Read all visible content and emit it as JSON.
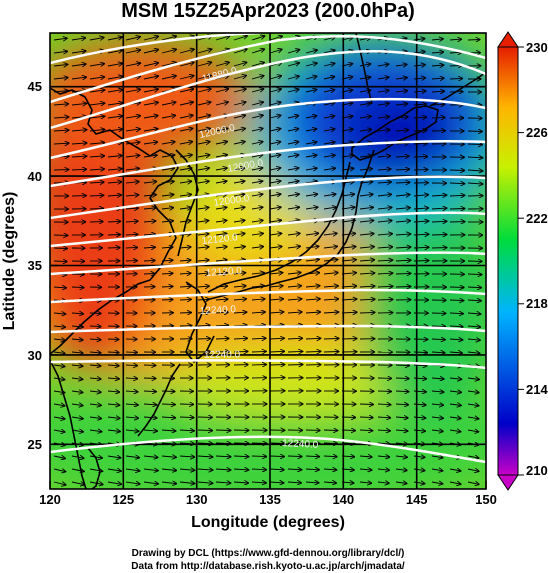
{
  "title": "MSM 15Z25Apr2023 (200.0hPa)",
  "x_axis": {
    "label": "Longitude (degrees)",
    "ticks": [
      "120",
      "125",
      "130",
      "135",
      "140",
      "145",
      "150"
    ]
  },
  "y_axis": {
    "label": "Latitude  (degrees)",
    "ticks": [
      "25",
      "30",
      "35",
      "40",
      "45"
    ]
  },
  "colorbar": {
    "ticks": [
      "210",
      "214",
      "218",
      "222",
      "226",
      "230"
    ]
  },
  "credits": {
    "line1": "Drawing by DCL (https://www.gfd-dennou.org/library/dcl/)",
    "line2": "Data from http://database.rish.kyoto-u.ac.jp/arch/jmadata/"
  },
  "contour_labels": [
    "11880.0",
    "12000.0",
    "12000.0",
    "12000.0",
    "12120.0",
    "12120.0",
    "12240.0",
    "12240.0",
    "12240.0"
  ],
  "chart_data": {
    "type": "heatmap",
    "title": "MSM 15Z25Apr2023 (200.0hPa)",
    "xlabel": "Longitude (degrees)",
    "ylabel": "Latitude  (degrees)",
    "xlim": [
      120,
      150
    ],
    "ylim": [
      22.5,
      48
    ],
    "xticks": [
      120,
      125,
      130,
      135,
      140,
      145,
      150
    ],
    "yticks": [
      25,
      30,
      35,
      40,
      45
    ],
    "colorbar_range": [
      210,
      230
    ],
    "colorbar_ticks": [
      210,
      214,
      218,
      222,
      226,
      230
    ],
    "colorbar_colors": [
      "#c800c8",
      "#0000c8",
      "#00b4ff",
      "#00dc3c",
      "#c8f000",
      "#ffb400",
      "#e61e00"
    ],
    "field_samples": [
      {
        "lon": 122,
        "lat": 36,
        "value": 229.5
      },
      {
        "lon": 124,
        "lat": 40,
        "value": 229
      },
      {
        "lon": 128,
        "lat": 44,
        "value": 228.5
      },
      {
        "lon": 130,
        "lat": 32,
        "value": 227.5
      },
      {
        "lon": 133,
        "lat": 38,
        "value": 225
      },
      {
        "lon": 137,
        "lat": 34,
        "value": 226.5
      },
      {
        "lon": 140,
        "lat": 43,
        "value": 212
      },
      {
        "lon": 142,
        "lat": 44,
        "value": 211
      },
      {
        "lon": 145,
        "lat": 41,
        "value": 214
      },
      {
        "lon": 146,
        "lat": 34,
        "value": 222
      },
      {
        "lon": 135,
        "lat": 28,
        "value": 222.5
      },
      {
        "lon": 125,
        "lat": 24,
        "value": 221
      },
      {
        "lon": 148,
        "lat": 25,
        "value": 221.5
      }
    ],
    "contour_interval": 60,
    "wind_direction": "westerly to west-southwesterly"
  }
}
